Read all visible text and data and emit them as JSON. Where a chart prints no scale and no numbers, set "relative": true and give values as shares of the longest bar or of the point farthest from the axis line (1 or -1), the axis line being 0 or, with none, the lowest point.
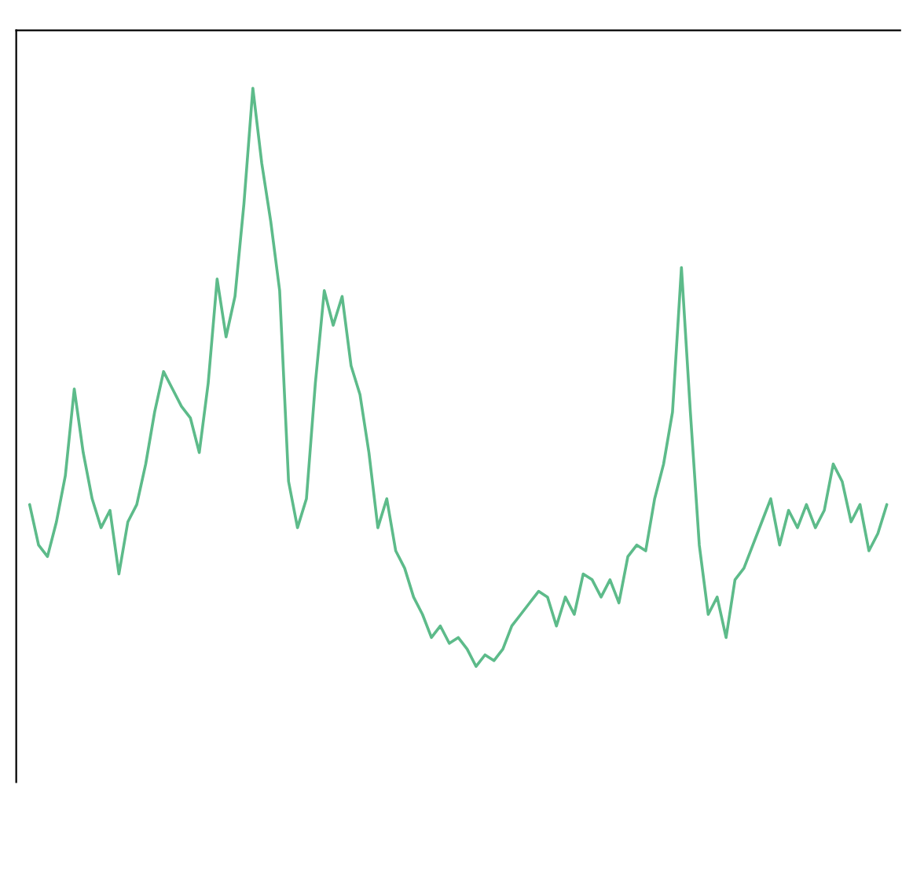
{
  "chart_data": {
    "type": "line",
    "relative": true,
    "categories": [
      null,
      null,
      null,
      null,
      null,
      null,
      null,
      null,
      null,
      null,
      null,
      null,
      null,
      null,
      null,
      null,
      null,
      null,
      null,
      null,
      null,
      null,
      null,
      null,
      null,
      null,
      null,
      null,
      null,
      null,
      null,
      null,
      null,
      null,
      null,
      null,
      null,
      null,
      null,
      null,
      null,
      null,
      null,
      null,
      null,
      null,
      null,
      null,
      null,
      null,
      null,
      null,
      null,
      null,
      null,
      null,
      null,
      null,
      null,
      null,
      null,
      null,
      null,
      null,
      null,
      null,
      null,
      null,
      null,
      null,
      null,
      null,
      null,
      null,
      null,
      null,
      null,
      null,
      null,
      null,
      null,
      null,
      null,
      null,
      null,
      null,
      null,
      null,
      null,
      null,
      null,
      null,
      null,
      null,
      null,
      null,
      null
    ],
    "series": [
      {
        "color": "#5dbb8a",
        "values": [
          0.28,
          0.21,
          0.19,
          0.25,
          0.33,
          0.48,
          0.37,
          0.29,
          0.24,
          0.27,
          0.16,
          0.25,
          0.28,
          0.35,
          0.44,
          0.51,
          0.48,
          0.45,
          0.43,
          0.37,
          0.49,
          0.67,
          0.57,
          0.64,
          0.8,
          1,
          0.87,
          0.77,
          0.65,
          0.32,
          0.24,
          0.29,
          0.49,
          0.65,
          0.59,
          0.64,
          0.52,
          0.47,
          0.37,
          0.24,
          0.29,
          0.2,
          0.17,
          0.12,
          0.09,
          0.05,
          0.07,
          0.04,
          0.05,
          0.03,
          0,
          0.02,
          0.01,
          0.03,
          0.07,
          0.09,
          0.11,
          0.13,
          0.12,
          0.07,
          0.12,
          0.09,
          0.16,
          0.15,
          0.12,
          0.15,
          0.11,
          0.19,
          0.21,
          0.2,
          0.29,
          0.35,
          0.44,
          0.69,
          0.44,
          0.21,
          0.09,
          0.12,
          0.05,
          0.15,
          0.17,
          0.21,
          0.25,
          0.29,
          0.21,
          0.27,
          0.24,
          0.28,
          0.24,
          0.27,
          0.35,
          0.32,
          0.25,
          0.28,
          0.2,
          0.23,
          0.28
        ]
      }
    ],
    "legend": false,
    "grid": false
  }
}
